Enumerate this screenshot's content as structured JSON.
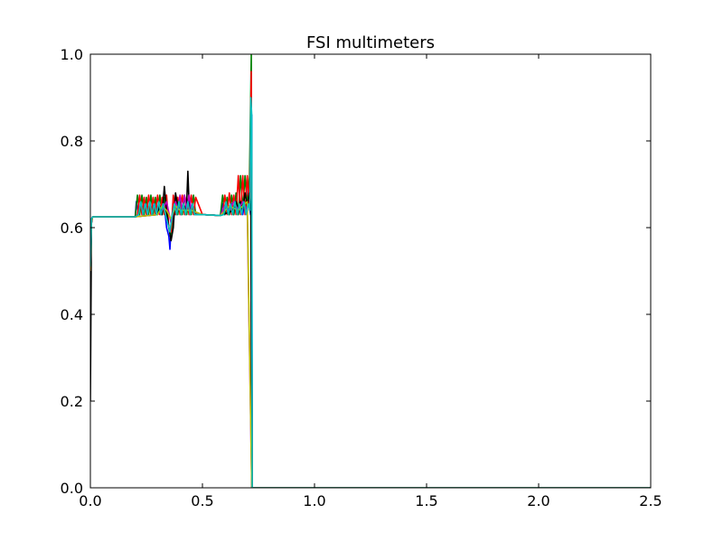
{
  "chart_data": {
    "type": "line",
    "title": "FSI multimeters",
    "xlabel": "",
    "ylabel": "",
    "xlim": [
      0,
      2.5
    ],
    "ylim": [
      0,
      1
    ],
    "x_ticks": [
      0,
      0.5,
      1,
      1.5,
      2,
      2.5
    ],
    "x_tick_labels": [
      "0.0",
      "0.5",
      "1.0",
      "1.5",
      "2.0",
      "2.5"
    ],
    "y_ticks": [
      0,
      0.2,
      0.4,
      0.6,
      0.8,
      1
    ],
    "y_tick_labels": [
      "0.0",
      "0.2",
      "0.4",
      "0.6",
      "0.8",
      "1.0"
    ],
    "grid": false,
    "legend": "none",
    "series": [
      {
        "color": "#0000ff",
        "x": [
          0.0,
          0.005,
          0.01,
          0.02,
          0.2,
          0.205,
          0.215,
          0.225,
          0.235,
          0.245,
          0.255,
          0.265,
          0.275,
          0.285,
          0.295,
          0.305,
          0.315,
          0.325,
          0.335,
          0.34,
          0.35,
          0.355,
          0.36,
          0.365,
          0.375,
          0.385,
          0.395,
          0.405,
          0.415,
          0.425,
          0.435,
          0.445,
          0.455,
          0.465,
          0.475,
          0.5,
          0.58,
          0.59,
          0.6,
          0.61,
          0.62,
          0.63,
          0.64,
          0.65,
          0.66,
          0.67,
          0.68,
          0.69,
          0.7,
          0.705,
          0.71,
          0.715,
          0.72,
          0.722,
          0.725,
          1.0,
          1.5,
          2.0,
          2.5
        ],
        "y": [
          0.51,
          0.62,
          0.625,
          0.625,
          0.625,
          0.66,
          0.63,
          0.655,
          0.63,
          0.66,
          0.63,
          0.65,
          0.63,
          0.66,
          0.63,
          0.65,
          0.63,
          0.66,
          0.625,
          0.6,
          0.58,
          0.55,
          0.6,
          0.63,
          0.655,
          0.63,
          0.66,
          0.63,
          0.655,
          0.63,
          0.66,
          0.63,
          0.655,
          0.63,
          0.635,
          0.63,
          0.628,
          0.655,
          0.63,
          0.66,
          0.63,
          0.655,
          0.63,
          0.66,
          0.63,
          0.65,
          0.63,
          0.66,
          0.64,
          0.7,
          0.65,
          0.63,
          0.86,
          0.0,
          0.0,
          0.0,
          0.0,
          0.0,
          0.0
        ]
      },
      {
        "color": "#008000",
        "x": [
          0.0,
          0.005,
          0.01,
          0.02,
          0.2,
          0.21,
          0.22,
          0.23,
          0.24,
          0.25,
          0.26,
          0.27,
          0.28,
          0.29,
          0.3,
          0.31,
          0.32,
          0.33,
          0.34,
          0.35,
          0.36,
          0.37,
          0.38,
          0.39,
          0.4,
          0.41,
          0.42,
          0.43,
          0.44,
          0.45,
          0.46,
          0.47,
          0.5,
          0.58,
          0.59,
          0.6,
          0.61,
          0.62,
          0.63,
          0.64,
          0.65,
          0.66,
          0.67,
          0.68,
          0.69,
          0.7,
          0.71,
          0.718,
          0.722,
          0.725,
          1.0,
          1.5,
          2.0,
          2.5
        ],
        "y": [
          0.5,
          0.615,
          0.625,
          0.625,
          0.625,
          0.675,
          0.63,
          0.675,
          0.63,
          0.67,
          0.63,
          0.675,
          0.63,
          0.67,
          0.63,
          0.675,
          0.63,
          0.67,
          0.63,
          0.6,
          0.58,
          0.63,
          0.675,
          0.63,
          0.67,
          0.63,
          0.675,
          0.63,
          0.67,
          0.63,
          0.675,
          0.63,
          0.63,
          0.628,
          0.675,
          0.63,
          0.67,
          0.63,
          0.675,
          0.63,
          0.68,
          0.63,
          0.72,
          0.64,
          0.72,
          0.65,
          0.72,
          1.0,
          0.0,
          0.0,
          0.0,
          0.0,
          0.0,
          0.0
        ]
      },
      {
        "color": "#ff0000",
        "x": [
          0.0,
          0.005,
          0.01,
          0.02,
          0.2,
          0.21,
          0.22,
          0.23,
          0.24,
          0.25,
          0.26,
          0.27,
          0.28,
          0.29,
          0.3,
          0.31,
          0.32,
          0.33,
          0.34,
          0.35,
          0.36,
          0.37,
          0.38,
          0.39,
          0.4,
          0.41,
          0.42,
          0.43,
          0.44,
          0.45,
          0.46,
          0.47,
          0.5,
          0.58,
          0.59,
          0.6,
          0.61,
          0.62,
          0.63,
          0.64,
          0.65,
          0.66,
          0.67,
          0.68,
          0.69,
          0.7,
          0.71,
          0.718,
          0.722,
          0.725,
          1.0,
          1.5,
          2.0,
          2.5
        ],
        "y": [
          0.5,
          0.615,
          0.625,
          0.625,
          0.625,
          0.63,
          0.675,
          0.63,
          0.67,
          0.63,
          0.675,
          0.63,
          0.67,
          0.63,
          0.675,
          0.63,
          0.67,
          0.63,
          0.675,
          0.6,
          0.59,
          0.675,
          0.63,
          0.67,
          0.63,
          0.675,
          0.63,
          0.67,
          0.63,
          0.675,
          0.63,
          0.67,
          0.63,
          0.628,
          0.63,
          0.675,
          0.63,
          0.68,
          0.63,
          0.675,
          0.63,
          0.72,
          0.63,
          0.72,
          0.63,
          0.72,
          0.64,
          0.96,
          0.0,
          0.0,
          0.0,
          0.0,
          0.0,
          0.0
        ]
      },
      {
        "color": "#000000",
        "x": [
          0.0,
          0.005,
          0.01,
          0.02,
          0.2,
          0.3,
          0.31,
          0.32,
          0.33,
          0.34,
          0.35,
          0.36,
          0.37,
          0.38,
          0.39,
          0.4,
          0.42,
          0.43,
          0.435,
          0.44,
          0.45,
          0.47,
          0.5,
          0.58,
          0.64,
          0.65,
          0.66,
          0.67,
          0.68,
          0.69,
          0.7,
          0.71,
          0.716,
          0.72,
          0.725,
          1.0,
          1.5,
          2.0,
          2.5
        ],
        "y": [
          0.2,
          0.61,
          0.625,
          0.625,
          0.625,
          0.63,
          0.65,
          0.63,
          0.695,
          0.64,
          0.6,
          0.57,
          0.6,
          0.68,
          0.65,
          0.64,
          0.64,
          0.66,
          0.73,
          0.66,
          0.64,
          0.635,
          0.63,
          0.628,
          0.64,
          0.66,
          0.64,
          0.66,
          0.64,
          0.68,
          0.65,
          0.68,
          0.65,
          0.0,
          0.0,
          0.0,
          0.0,
          0.0,
          0.0
        ]
      },
      {
        "color": "#bf00bf",
        "x": [
          0.0,
          0.005,
          0.01,
          0.02,
          0.2,
          0.3,
          0.32,
          0.34,
          0.36,
          0.38,
          0.39,
          0.4,
          0.41,
          0.42,
          0.43,
          0.44,
          0.45,
          0.47,
          0.5,
          0.58,
          0.6,
          0.62,
          0.64,
          0.66,
          0.68,
          0.7,
          0.72,
          0.725,
          1.0,
          1.5,
          2.0,
          2.5
        ],
        "y": [
          0.5,
          0.615,
          0.625,
          0.625,
          0.625,
          0.63,
          0.64,
          0.66,
          0.61,
          0.66,
          0.64,
          0.675,
          0.64,
          0.675,
          0.64,
          0.675,
          0.64,
          0.635,
          0.63,
          0.628,
          0.65,
          0.64,
          0.66,
          0.64,
          0.66,
          0.64,
          0.0,
          0.0,
          0.0,
          0.0,
          0.0,
          0.0
        ]
      },
      {
        "color": "#bfbf00",
        "x": [
          0.0,
          0.005,
          0.01,
          0.02,
          0.2,
          0.3,
          0.32,
          0.34,
          0.36,
          0.38,
          0.4,
          0.45,
          0.5,
          0.58,
          0.62,
          0.66,
          0.7,
          0.72,
          0.725,
          1.0,
          1.5,
          2.0,
          2.5
        ],
        "y": [
          0.5,
          0.615,
          0.625,
          0.625,
          0.625,
          0.63,
          0.65,
          0.64,
          0.62,
          0.65,
          0.64,
          0.64,
          0.63,
          0.628,
          0.65,
          0.64,
          0.66,
          0.0,
          0.0,
          0.0,
          0.0,
          0.0,
          0.0
        ]
      },
      {
        "color": "#00bfbf",
        "x": [
          0.0,
          0.005,
          0.01,
          0.02,
          0.2,
          0.215,
          0.225,
          0.235,
          0.245,
          0.255,
          0.265,
          0.275,
          0.285,
          0.295,
          0.305,
          0.315,
          0.325,
          0.335,
          0.345,
          0.355,
          0.365,
          0.375,
          0.385,
          0.395,
          0.405,
          0.415,
          0.425,
          0.435,
          0.445,
          0.455,
          0.465,
          0.5,
          0.58,
          0.595,
          0.605,
          0.615,
          0.625,
          0.635,
          0.645,
          0.655,
          0.665,
          0.675,
          0.685,
          0.695,
          0.705,
          0.712,
          0.716,
          0.72,
          0.722,
          0.725,
          1.0,
          1.5,
          2.0,
          2.5
        ],
        "y": [
          0.51,
          0.62,
          0.625,
          0.625,
          0.625,
          0.63,
          0.66,
          0.63,
          0.655,
          0.63,
          0.66,
          0.63,
          0.655,
          0.63,
          0.66,
          0.63,
          0.655,
          0.63,
          0.61,
          0.59,
          0.63,
          0.655,
          0.63,
          0.66,
          0.63,
          0.655,
          0.63,
          0.66,
          0.63,
          0.655,
          0.63,
          0.63,
          0.628,
          0.63,
          0.66,
          0.63,
          0.655,
          0.63,
          0.66,
          0.63,
          0.655,
          0.63,
          0.66,
          0.63,
          0.655,
          0.64,
          0.9,
          0.86,
          0.0,
          0.0,
          0.0,
          0.0,
          0.0,
          0.0
        ]
      }
    ]
  }
}
